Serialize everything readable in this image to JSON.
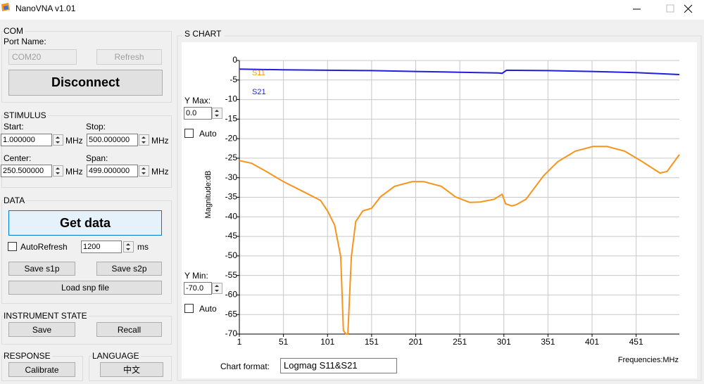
{
  "window": {
    "title": "NanoVNA v1.01"
  },
  "com": {
    "label": "COM",
    "port_label": "Port Name:",
    "port": "COM20",
    "refresh": "Refresh",
    "disconnect": "Disconnect"
  },
  "stimulus": {
    "label": "STIMULUS",
    "start_label": "Start:",
    "start": "1.000000",
    "start_unit": "MHz",
    "stop_label": "Stop:",
    "stop": "500.000000",
    "stop_unit": "MHz",
    "center_label": "Center:",
    "center": "250.500000",
    "center_unit": "MHz",
    "span_label": "Span:",
    "span": "499.000000",
    "span_unit": "MHz"
  },
  "data_panel": {
    "label": "DATA",
    "get_data": "Get data",
    "auto_refresh": "AutoRefresh",
    "interval": "1200",
    "interval_unit": "ms",
    "save_s1p": "Save s1p",
    "save_s2p": "Save s2p",
    "load_snp": "Load snp file"
  },
  "instrument_state": {
    "label": "INSTRUMENT STATE",
    "save": "Save",
    "recall": "Recall"
  },
  "response": {
    "label": "RESPONSE",
    "calibrate": "Calibrate"
  },
  "language": {
    "label": "LANGUAGE",
    "button": "中文"
  },
  "chart_controls": {
    "y_max_label": "Y Max:",
    "y_max": "0.0",
    "y_max_auto": "Auto",
    "y_min_label": "Y Min:",
    "y_min": "-70.0",
    "y_min_auto": "Auto",
    "format_label": "Chart format:",
    "format": "Logmag S11&S21"
  },
  "chart_data": {
    "type": "line",
    "title": "S CHART",
    "y_label": "Magnitude:dB",
    "x_label": "Frequencies:MHz",
    "xlim": [
      1,
      500
    ],
    "xticks": [
      1,
      51,
      101,
      151,
      201,
      251,
      301,
      351,
      401,
      451
    ],
    "ylim": [
      -70,
      0
    ],
    "yticks": [
      0,
      -5,
      -10,
      -15,
      -20,
      -25,
      -30,
      -35,
      -40,
      -45,
      -50,
      -55,
      -60,
      -65,
      -70
    ],
    "grid": true,
    "series": [
      {
        "name": "S11",
        "color": "#f7941d",
        "x": [
          1,
          15,
          33,
          51,
          73,
          93,
          101,
          109,
          116,
          119,
          122,
          124,
          128,
          133,
          141,
          151,
          161,
          177,
          197,
          210,
          230,
          246,
          262,
          274,
          290,
          299,
          303,
          310,
          315,
          326,
          346,
          362,
          382,
          402,
          418,
          438,
          458,
          478,
          486,
          500
        ],
        "values": [
          -25.6,
          -26.3,
          -28.6,
          -31.0,
          -33.5,
          -35.8,
          -38.5,
          -42.1,
          -50.2,
          -69.1,
          -70,
          -70,
          -50.2,
          -41.2,
          -38.5,
          -37.8,
          -34.9,
          -32.2,
          -31.0,
          -31.0,
          -32.2,
          -34.9,
          -36.3,
          -36.2,
          -35.5,
          -34.2,
          -36.7,
          -37.2,
          -36.9,
          -35.5,
          -29.5,
          -25.9,
          -23.2,
          -22.0,
          -22.0,
          -23.2,
          -25.9,
          -28.8,
          -28.4,
          -24.1
        ]
      },
      {
        "name": "S21",
        "color": "#1f1fdf",
        "x": [
          1,
          51,
          101,
          151,
          201,
          251,
          295,
          299,
          304,
          351,
          401,
          451,
          500
        ],
        "values": [
          -2.2,
          -2.4,
          -2.5,
          -2.6,
          -2.8,
          -3.0,
          -3.2,
          -3.3,
          -2.5,
          -2.6,
          -2.8,
          -3.1,
          -3.6
        ]
      }
    ]
  }
}
